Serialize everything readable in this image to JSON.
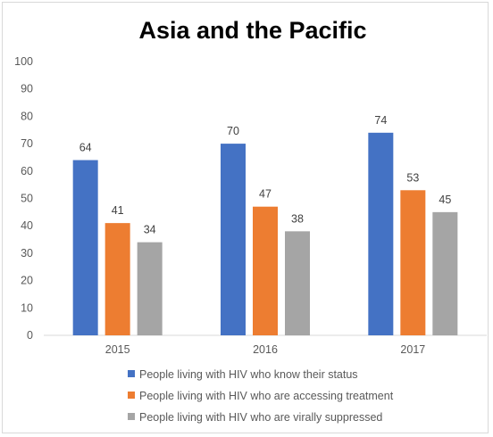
{
  "chart_data": {
    "type": "bar",
    "title": "Asia and the Pacific",
    "categories": [
      "2015",
      "2016",
      "2017"
    ],
    "series": [
      {
        "name": "People living with HIV who know their status",
        "values": [
          64,
          70,
          74
        ],
        "color": "#4472c4"
      },
      {
        "name": "People living with HIV who are accessing treatment",
        "values": [
          41,
          47,
          53
        ],
        "color": "#ed7d31"
      },
      {
        "name": "People living with HIV who are virally suppressed",
        "values": [
          34,
          38,
          45
        ],
        "color": "#a5a5a5"
      }
    ],
    "ylim": [
      0,
      100
    ],
    "yticks": [
      0,
      10,
      20,
      30,
      40,
      50,
      60,
      70,
      80,
      90,
      100
    ],
    "grid": false,
    "legend_position": "bottom",
    "data_labels": true,
    "axis_line_color": "#d9d9d9"
  }
}
